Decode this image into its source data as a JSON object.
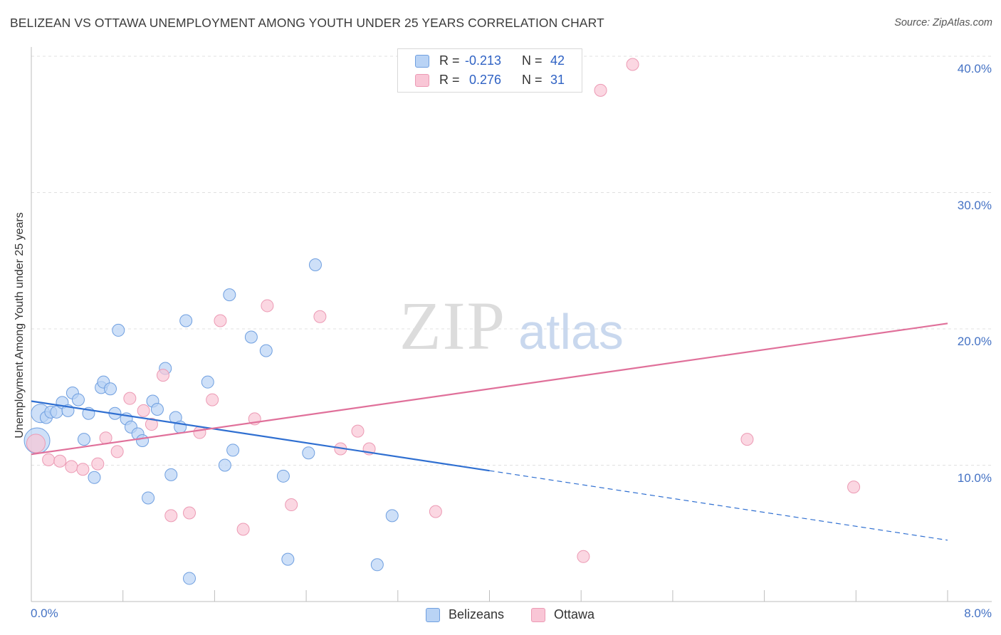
{
  "title": "BELIZEAN VS OTTAWA UNEMPLOYMENT AMONG YOUTH UNDER 25 YEARS CORRELATION CHART",
  "source": "Source: ZipAtlas.com",
  "watermark": {
    "part1": "ZIP",
    "part2": "atlas"
  },
  "legend_top": {
    "r_label": "R =",
    "n_label": "N =",
    "rows": [
      {
        "r": "-0.213",
        "n": "42"
      },
      {
        "r": "0.276",
        "n": "31"
      }
    ]
  },
  "legend_bottom": [
    "Belizeans",
    "Ottawa"
  ],
  "colors": {
    "blue_fill": "#b9d3f5",
    "blue_stroke": "#6f9fe0",
    "blue_line": "#2f6fd1",
    "pink_fill": "#f9c6d6",
    "pink_stroke": "#ec9ab4",
    "pink_line": "#e0709a",
    "tick_text": "#4472c4",
    "grid": "#e0e0e0"
  },
  "chart_data": {
    "type": "scatter",
    "title": "BELIZEAN VS OTTAWA UNEMPLOYMENT AMONG YOUTH UNDER 25 YEARS CORRELATION CHART",
    "xlabel": "",
    "ylabel": "Unemployment Among Youth under 25 years",
    "xlim": [
      0,
      8
    ],
    "ylim": [
      0,
      40
    ],
    "x_tick_labels": [
      "0.0%",
      "8.0%"
    ],
    "y_ticks": [
      10,
      20,
      30,
      40
    ],
    "y_tick_labels": [
      "10.0%",
      "20.0%",
      "30.0%",
      "40.0%"
    ],
    "grid": true,
    "legend_position": "top-center",
    "series": [
      {
        "name": "Belizeans",
        "r": -0.213,
        "n": 42,
        "trend": {
          "x0": 0.0,
          "y0": 14.7,
          "x1": 4.0,
          "y1": 9.6,
          "dashed_to_x": 8.0,
          "dashed_to_y": 4.5
        },
        "points": [
          {
            "x": 0.05,
            "y": 11.8,
            "big": 2
          },
          {
            "x": 0.08,
            "y": 13.8,
            "big": 1
          },
          {
            "x": 0.13,
            "y": 13.5
          },
          {
            "x": 0.17,
            "y": 13.9
          },
          {
            "x": 0.22,
            "y": 13.9
          },
          {
            "x": 0.27,
            "y": 14.6
          },
          {
            "x": 0.32,
            "y": 14.0
          },
          {
            "x": 0.36,
            "y": 15.3
          },
          {
            "x": 0.41,
            "y": 14.8
          },
          {
            "x": 0.46,
            "y": 11.9
          },
          {
            "x": 0.5,
            "y": 13.8
          },
          {
            "x": 0.55,
            "y": 9.1
          },
          {
            "x": 0.61,
            "y": 15.7
          },
          {
            "x": 0.63,
            "y": 16.1
          },
          {
            "x": 0.69,
            "y": 15.6
          },
          {
            "x": 0.73,
            "y": 13.8
          },
          {
            "x": 0.76,
            "y": 19.9
          },
          {
            "x": 0.83,
            "y": 13.4
          },
          {
            "x": 0.87,
            "y": 12.8
          },
          {
            "x": 0.93,
            "y": 12.3
          },
          {
            "x": 0.97,
            "y": 11.8
          },
          {
            "x": 1.02,
            "y": 7.6
          },
          {
            "x": 1.06,
            "y": 14.7
          },
          {
            "x": 1.1,
            "y": 14.1
          },
          {
            "x": 1.17,
            "y": 17.1
          },
          {
            "x": 1.22,
            "y": 9.3
          },
          {
            "x": 1.26,
            "y": 13.5
          },
          {
            "x": 1.3,
            "y": 12.8
          },
          {
            "x": 1.35,
            "y": 20.6
          },
          {
            "x": 1.38,
            "y": 1.7
          },
          {
            "x": 1.54,
            "y": 16.1
          },
          {
            "x": 1.69,
            "y": 10.0
          },
          {
            "x": 1.73,
            "y": 22.5
          },
          {
            "x": 1.76,
            "y": 11.1
          },
          {
            "x": 1.92,
            "y": 19.4
          },
          {
            "x": 2.05,
            "y": 18.4
          },
          {
            "x": 2.2,
            "y": 9.2
          },
          {
            "x": 2.24,
            "y": 3.1
          },
          {
            "x": 2.42,
            "y": 10.9
          },
          {
            "x": 2.48,
            "y": 24.7
          },
          {
            "x": 3.02,
            "y": 2.7
          },
          {
            "x": 3.15,
            "y": 6.3
          }
        ]
      },
      {
        "name": "Ottawa",
        "r": 0.276,
        "n": 31,
        "trend": {
          "x0": 0.0,
          "y0": 10.8,
          "x1": 8.0,
          "y1": 20.4
        },
        "points": [
          {
            "x": 0.04,
            "y": 11.6,
            "big": 1
          },
          {
            "x": 0.15,
            "y": 10.4
          },
          {
            "x": 0.25,
            "y": 10.3
          },
          {
            "x": 0.35,
            "y": 9.9
          },
          {
            "x": 0.45,
            "y": 9.7
          },
          {
            "x": 0.58,
            "y": 10.1
          },
          {
            "x": 0.65,
            "y": 12.0
          },
          {
            "x": 0.75,
            "y": 11.0
          },
          {
            "x": 0.86,
            "y": 14.9
          },
          {
            "x": 0.98,
            "y": 14.0
          },
          {
            "x": 1.05,
            "y": 13.0
          },
          {
            "x": 1.15,
            "y": 16.6
          },
          {
            "x": 1.22,
            "y": 6.3
          },
          {
            "x": 1.38,
            "y": 6.5
          },
          {
            "x": 1.47,
            "y": 12.4
          },
          {
            "x": 1.58,
            "y": 14.8
          },
          {
            "x": 1.65,
            "y": 20.6
          },
          {
            "x": 1.85,
            "y": 5.3
          },
          {
            "x": 1.95,
            "y": 13.4
          },
          {
            "x": 2.06,
            "y": 21.7
          },
          {
            "x": 2.27,
            "y": 7.1
          },
          {
            "x": 2.52,
            "y": 20.9
          },
          {
            "x": 2.7,
            "y": 11.2
          },
          {
            "x": 2.85,
            "y": 12.5
          },
          {
            "x": 2.95,
            "y": 11.2
          },
          {
            "x": 3.53,
            "y": 6.6
          },
          {
            "x": 4.82,
            "y": 3.3
          },
          {
            "x": 4.97,
            "y": 37.5
          },
          {
            "x": 5.25,
            "y": 39.4
          },
          {
            "x": 6.25,
            "y": 11.9
          },
          {
            "x": 7.18,
            "y": 8.4
          }
        ]
      }
    ]
  }
}
